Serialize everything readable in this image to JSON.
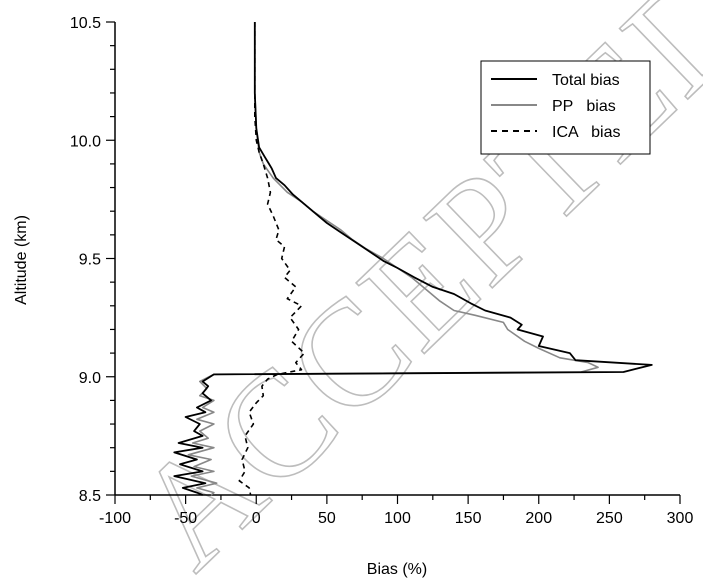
{
  "chart_data": {
    "type": "line",
    "xlabel": "Bias (%)",
    "ylabel": "Altitude (km)",
    "xlim": [
      -100,
      300
    ],
    "ylim": [
      8.5,
      10.5
    ],
    "xticks": [
      "-100",
      "-50",
      "0",
      "50",
      "100",
      "150",
      "200",
      "250",
      "300"
    ],
    "yticks": [
      "8.5",
      "9.0",
      "9.5",
      "10.0",
      "10.5"
    ],
    "legend_position": "top-right",
    "watermark": "ACCEPTED MANUSCRIPT",
    "series": [
      {
        "name": "Total bias",
        "color": "#000000",
        "dash": "solid",
        "points": [
          [
            -1,
            10.5
          ],
          [
            -1,
            10.2
          ],
          [
            0,
            10.05
          ],
          [
            2,
            9.97
          ],
          [
            6,
            9.93
          ],
          [
            9,
            9.9
          ],
          [
            11,
            9.88
          ],
          [
            14,
            9.84
          ],
          [
            20,
            9.81
          ],
          [
            26,
            9.77
          ],
          [
            34,
            9.73
          ],
          [
            42,
            9.69
          ],
          [
            50,
            9.65
          ],
          [
            60,
            9.61
          ],
          [
            70,
            9.57
          ],
          [
            80,
            9.53
          ],
          [
            90,
            9.49
          ],
          [
            100,
            9.46
          ],
          [
            112,
            9.42
          ],
          [
            125,
            9.38
          ],
          [
            140,
            9.35
          ],
          [
            152,
            9.31
          ],
          [
            162,
            9.28
          ],
          [
            180,
            9.25
          ],
          [
            188,
            9.22
          ],
          [
            185,
            9.2
          ],
          [
            203,
            9.17
          ],
          [
            200,
            9.13
          ],
          [
            222,
            9.1
          ],
          [
            226,
            9.07
          ],
          [
            280,
            9.05
          ],
          [
            260,
            9.02
          ],
          [
            -30,
            9.01
          ],
          [
            -38,
            8.98
          ],
          [
            -34,
            8.96
          ],
          [
            -38,
            8.93
          ],
          [
            -32,
            8.9
          ],
          [
            -42,
            8.87
          ],
          [
            -36,
            8.85
          ],
          [
            -50,
            8.83
          ],
          [
            -40,
            8.8
          ],
          [
            -44,
            8.77
          ],
          [
            -38,
            8.75
          ],
          [
            -55,
            8.72
          ],
          [
            -38,
            8.7
          ],
          [
            -58,
            8.68
          ],
          [
            -42,
            8.65
          ],
          [
            -54,
            8.63
          ],
          [
            -38,
            8.6
          ],
          [
            -58,
            8.58
          ],
          [
            -36,
            8.55
          ],
          [
            -52,
            8.53
          ],
          [
            -42,
            8.51
          ],
          [
            -38,
            8.5
          ]
        ]
      },
      {
        "name": "PP   bias",
        "color": "#888888",
        "dash": "solid",
        "points": [
          [
            -1,
            10.5
          ],
          [
            -1,
            10.2
          ],
          [
            0,
            10.05
          ],
          [
            2,
            9.95
          ],
          [
            5,
            9.9
          ],
          [
            12,
            9.84
          ],
          [
            22,
            9.78
          ],
          [
            32,
            9.74
          ],
          [
            40,
            9.7
          ],
          [
            50,
            9.66
          ],
          [
            60,
            9.62
          ],
          [
            68,
            9.58
          ],
          [
            78,
            9.54
          ],
          [
            90,
            9.5
          ],
          [
            100,
            9.46
          ],
          [
            110,
            9.42
          ],
          [
            120,
            9.37
          ],
          [
            130,
            9.32
          ],
          [
            140,
            9.28
          ],
          [
            155,
            9.26
          ],
          [
            175,
            9.23
          ],
          [
            178,
            9.2
          ],
          [
            190,
            9.15
          ],
          [
            200,
            9.12
          ],
          [
            215,
            9.08
          ],
          [
            235,
            9.06
          ],
          [
            242,
            9.04
          ],
          [
            230,
            9.02
          ],
          [
            -30,
            9.01
          ],
          [
            -40,
            8.98
          ],
          [
            -35,
            8.95
          ],
          [
            -40,
            8.92
          ],
          [
            -30,
            8.9
          ],
          [
            -38,
            8.87
          ],
          [
            -30,
            8.85
          ],
          [
            -42,
            8.82
          ],
          [
            -30,
            8.8
          ],
          [
            -40,
            8.77
          ],
          [
            -34,
            8.74
          ],
          [
            -45,
            8.72
          ],
          [
            -30,
            8.7
          ],
          [
            -48,
            8.67
          ],
          [
            -32,
            8.65
          ],
          [
            -44,
            8.62
          ],
          [
            -30,
            8.6
          ],
          [
            -46,
            8.58
          ],
          [
            -28,
            8.55
          ],
          [
            -42,
            8.53
          ],
          [
            -30,
            8.51
          ],
          [
            -32,
            8.5
          ]
        ]
      },
      {
        "name": "ICA   bias",
        "color": "#000000",
        "dash": "dashed",
        "points": [
          [
            -1,
            10.5
          ],
          [
            -1,
            10.1
          ],
          [
            0,
            10.0
          ],
          [
            2,
            9.95
          ],
          [
            5,
            9.9
          ],
          [
            8,
            9.84
          ],
          [
            10,
            9.78
          ],
          [
            8,
            9.73
          ],
          [
            12,
            9.68
          ],
          [
            16,
            9.62
          ],
          [
            14,
            9.58
          ],
          [
            20,
            9.55
          ],
          [
            18,
            9.5
          ],
          [
            24,
            9.45
          ],
          [
            20,
            9.42
          ],
          [
            28,
            9.38
          ],
          [
            22,
            9.33
          ],
          [
            32,
            9.3
          ],
          [
            24,
            9.25
          ],
          [
            30,
            9.2
          ],
          [
            25,
            9.15
          ],
          [
            34,
            9.1
          ],
          [
            28,
            9.06
          ],
          [
            32,
            9.03
          ],
          [
            15,
            9.01
          ],
          [
            8,
            8.99
          ],
          [
            4,
            8.96
          ],
          [
            5,
            8.92
          ],
          [
            0,
            8.89
          ],
          [
            -5,
            8.85
          ],
          [
            -2,
            8.8
          ],
          [
            -8,
            8.75
          ],
          [
            -6,
            8.7
          ],
          [
            -10,
            8.65
          ],
          [
            -8,
            8.6
          ],
          [
            -12,
            8.56
          ],
          [
            -5,
            8.53
          ],
          [
            -4,
            8.5
          ]
        ]
      }
    ]
  }
}
